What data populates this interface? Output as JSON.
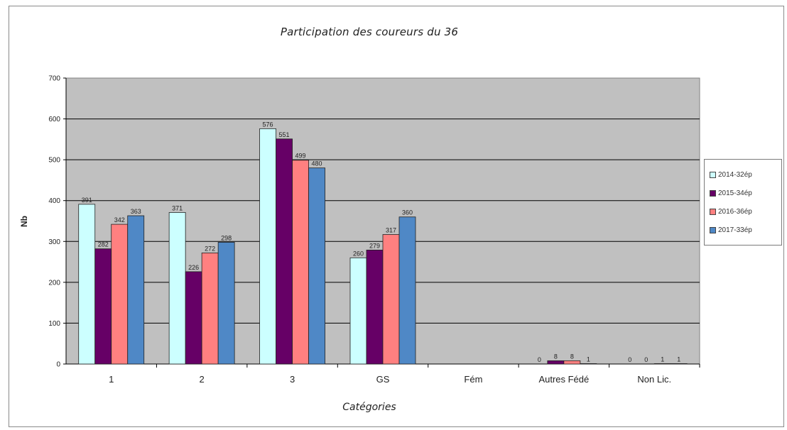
{
  "chart_data": {
    "type": "bar",
    "title": "Participation des coureurs du 36",
    "xlabel": "Catégories",
    "ylabel": "Nb",
    "ylim": [
      0,
      700
    ],
    "yticks": [
      "0",
      "100",
      "200",
      "300",
      "400",
      "500",
      "600",
      "700"
    ],
    "categories": [
      "1",
      "2",
      "3",
      "GS",
      "Fém",
      "Autres Fédé",
      "Non Lic."
    ],
    "grid": true,
    "legend_position": "right",
    "series": [
      {
        "name": "2014-32ép",
        "color": "#ccffff",
        "values": [
          391,
          371,
          576,
          260,
          null,
          0,
          0
        ],
        "labels": [
          "391",
          "371",
          "576",
          "260",
          "",
          "0",
          "0"
        ]
      },
      {
        "name": "2015-34ép",
        "color": "#660066",
        "values": [
          282,
          226,
          551,
          279,
          null,
          8,
          0
        ],
        "labels": [
          "282",
          "226",
          "551",
          "279",
          "",
          "8",
          "0"
        ]
      },
      {
        "name": "2016-36ép",
        "color": "#ff8080",
        "values": [
          342,
          272,
          499,
          317,
          null,
          8,
          1
        ],
        "labels": [
          "342",
          "272",
          "499",
          "317",
          "",
          "8",
          "1"
        ]
      },
      {
        "name": "2017-33ép",
        "color": "#4f88c6",
        "values": [
          363,
          298,
          480,
          360,
          null,
          1,
          1
        ],
        "labels": [
          "363",
          "298",
          "480",
          "360",
          "",
          "1",
          "1"
        ]
      }
    ],
    "plot_background": "#c0c0c0"
  }
}
